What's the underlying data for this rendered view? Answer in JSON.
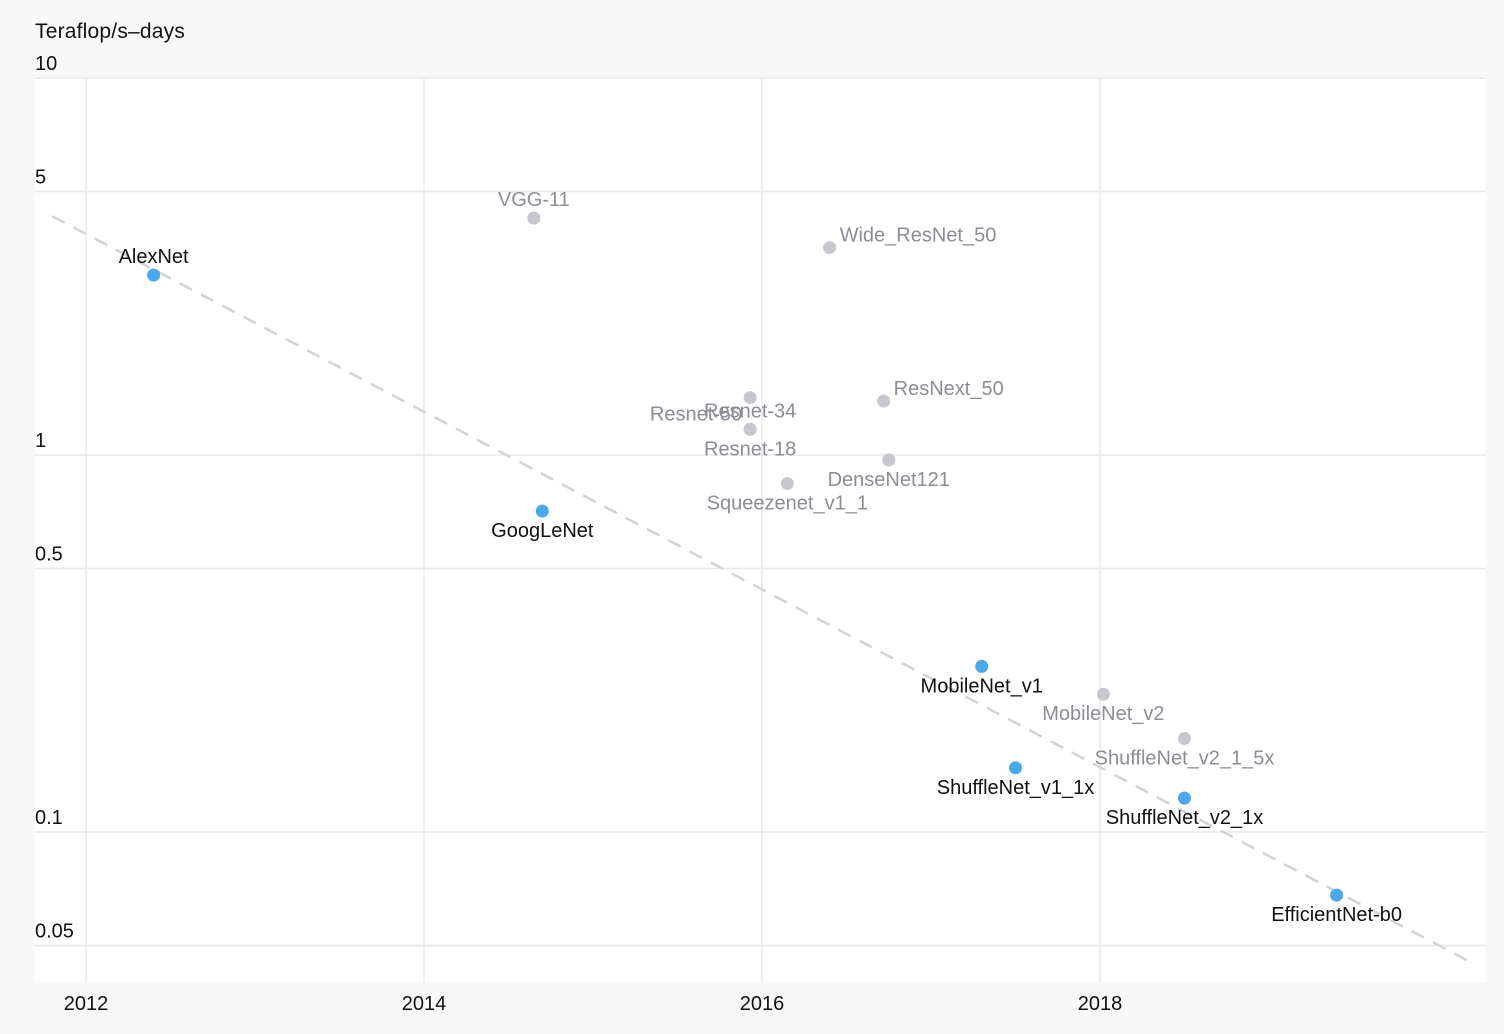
{
  "chart_data": {
    "type": "scatter",
    "title": "",
    "xlabel": "",
    "ylabel": "Teraflop/s–days",
    "y_scale": "log",
    "ylim": [
      0.04,
      10
    ],
    "xlim": [
      2011.85,
      2020.15
    ],
    "x_ticks": [
      2012,
      2014,
      2016,
      2018
    ],
    "x_tick_labels": [
      "2012",
      "2014",
      "2016",
      "2018"
    ],
    "y_ticks": [
      0.05,
      0.1,
      0.5,
      1,
      5,
      10
    ],
    "y_tick_labels": [
      "0.05",
      "0.1",
      "0.5",
      "1",
      "5",
      "10"
    ],
    "grid": true,
    "colors": {
      "highlight_point": "#4aa8eb",
      "highlight_label": "#111111",
      "other_point": "#c8c6cf",
      "other_label": "#8e8c96",
      "trend": "#d3d3d3",
      "grid": "#e8e8ea",
      "plot_bg": "#ffffff",
      "page_bg": "#f8f8f8"
    },
    "trend_line": {
      "style": "dashed",
      "x": [
        2011.8,
        2020.2
      ],
      "y": [
        4.3,
        0.045
      ]
    },
    "series": [
      {
        "highlighted": true,
        "points": [
          {
            "label": "AlexNet",
            "x": 2012.4,
            "y": 3.0,
            "label_pos": "above"
          },
          {
            "label": "GoogLeNet",
            "x": 2014.7,
            "y": 0.71,
            "label_pos": "below"
          },
          {
            "label": "MobileNet_v1",
            "x": 2017.3,
            "y": 0.275,
            "label_pos": "below"
          },
          {
            "label": "ShuffleNet_v1_1x",
            "x": 2017.5,
            "y": 0.148,
            "label_pos": "below"
          },
          {
            "label": "ShuffleNet_v2_1x",
            "x": 2018.5,
            "y": 0.123,
            "label_pos": "below"
          },
          {
            "label": "EfficientNet-b0",
            "x": 2019.4,
            "y": 0.068,
            "label_pos": "below"
          }
        ]
      },
      {
        "highlighted": false,
        "points": [
          {
            "label": "VGG-11",
            "x": 2014.65,
            "y": 4.25,
            "label_pos": "above"
          },
          {
            "label": "Wide_ResNet_50",
            "x": 2016.4,
            "y": 3.55,
            "label_pos": "right"
          },
          {
            "label": "Resnet-50",
            "x": 2015.93,
            "y": 1.42,
            "label_pos": "below-left"
          },
          {
            "label": "Resnet-34",
            "x": 2015.93,
            "y": 1.17,
            "label_pos": "above"
          },
          {
            "label": "Resnet-18",
            "x": 2015.93,
            "y": 1.17,
            "label_pos": "below"
          },
          {
            "label": "ResNext_50",
            "x": 2016.72,
            "y": 1.39,
            "label_pos": "right"
          },
          {
            "label": "DenseNet121",
            "x": 2016.75,
            "y": 0.97,
            "label_pos": "below"
          },
          {
            "label": "Squeezenet_v1_1",
            "x": 2016.15,
            "y": 0.84,
            "label_pos": "below"
          },
          {
            "label": "MobileNet_v2",
            "x": 2018.02,
            "y": 0.232,
            "label_pos": "below"
          },
          {
            "label": "ShuffleNet_v2_1_5x",
            "x": 2018.5,
            "y": 0.177,
            "label_pos": "below"
          }
        ]
      }
    ]
  }
}
